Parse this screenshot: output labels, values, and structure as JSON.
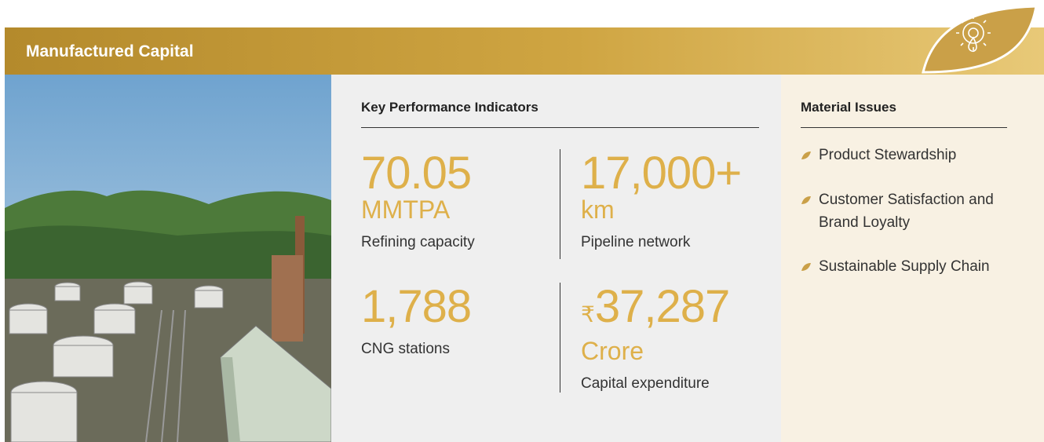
{
  "header": {
    "title": "Manufactured Capital"
  },
  "kpi_section": {
    "title": "Key Performance Indicators",
    "items": [
      {
        "value": "70.05",
        "unit": "MMTPA",
        "label": "Refining capacity"
      },
      {
        "value": "17,000+",
        "unit": "km",
        "label": "Pipeline network"
      },
      {
        "value": "1,788",
        "label": "CNG stations"
      },
      {
        "currency": "₹",
        "value": "37,287",
        "unit": "Crore",
        "label": "Capital expenditure"
      }
    ]
  },
  "material_issues": {
    "title": "Material Issues",
    "items": [
      "Product Stewardship",
      "Customer Satisfaction and Brand Loyalty",
      "Sustainable Supply Chain"
    ]
  }
}
